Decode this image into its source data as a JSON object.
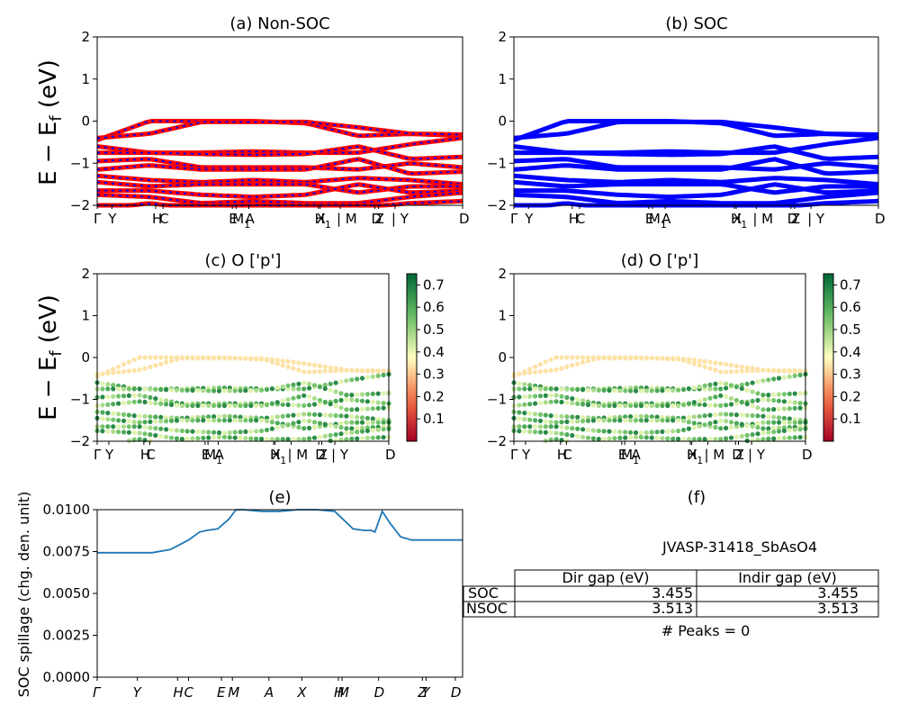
{
  "chart_data": [
    {
      "id": "a",
      "type": "line",
      "title": "(a) Non-SOC",
      "ylabel_main": "E − E",
      "ylabel_sub": "f",
      "ylabel_unit": " (eV)",
      "ylim": [
        -2,
        2
      ],
      "yticks": [
        "−2",
        "−1",
        "0",
        "1",
        "2"
      ],
      "kpath_labels": [
        {
          "t": "Γ",
          "x": 0.0
        },
        {
          "t": "Y",
          "x": 0.04
        },
        {
          "t": "H",
          "x": 0.16
        },
        {
          "t": "C",
          "x": 0.18
        },
        {
          "t": "E",
          "x": 0.37
        },
        {
          "t": "M",
          "x": 0.38,
          "sub": "1"
        },
        {
          "t": "A",
          "x": 0.415
        },
        {
          "t": "X",
          "x": 0.61
        },
        {
          "t": "H",
          "x": 0.605,
          "sub": "1"
        },
        {
          "t": "| M",
          "x": 0.665
        },
        {
          "t": "D",
          "x": 0.76
        },
        {
          "t": "Z",
          "x": 0.77
        },
        {
          "t": "| Y",
          "x": 0.815
        },
        {
          "t": "D",
          "x": 1.0
        }
      ],
      "series": [
        {
          "color": "#ff0000",
          "overlay": "#0000ff"
        }
      ]
    },
    {
      "id": "b",
      "type": "line",
      "title": "(b) SOC",
      "ylim": [
        -2,
        2
      ],
      "yticks": [
        "−2",
        "−1",
        "0",
        "1",
        "2"
      ],
      "series": [
        {
          "color": "#0000ff"
        }
      ]
    },
    {
      "id": "c",
      "type": "scatter",
      "title": "(c)  O ['p']",
      "ylim": [
        -2,
        2
      ],
      "yticks": [
        "−2",
        "−1",
        "0",
        "1",
        "2"
      ],
      "colorbar": {
        "cmap": "RdYlGn",
        "ticks": [
          "0.1",
          "0.2",
          "0.3",
          "0.4",
          "0.5",
          "0.6",
          "0.7"
        ],
        "min": 0.0,
        "max": 0.75
      }
    },
    {
      "id": "d",
      "type": "scatter",
      "title": "(d) O ['p']",
      "ylim": [
        -2,
        2
      ],
      "yticks": [
        "−2",
        "−1",
        "0",
        "1",
        "2"
      ],
      "colorbar": {
        "cmap": "RdYlGn",
        "ticks": [
          "0.1",
          "0.2",
          "0.3",
          "0.4",
          "0.5",
          "0.6",
          "0.7"
        ],
        "min": 0.0,
        "max": 0.75
      }
    },
    {
      "id": "e",
      "type": "line",
      "title": "(e)",
      "ylabel": "SOC spillage (chg. den. unit)",
      "ylim": [
        0,
        0.0105
      ],
      "yticks": [
        "0.0000",
        "0.0025",
        "0.0050",
        "0.0075",
        "0.0100"
      ],
      "xticks": [
        "Γ",
        "Y",
        "H",
        "C",
        "E",
        "M",
        "A",
        "X",
        "H",
        "M",
        "D",
        "Z",
        "Y",
        "D"
      ],
      "x": [
        0,
        0.05,
        0.1,
        0.15,
        0.2,
        0.25,
        0.28,
        0.3,
        0.33,
        0.36,
        0.38,
        0.4,
        0.45,
        0.5,
        0.55,
        0.6,
        0.65,
        0.7,
        0.73,
        0.75,
        0.76,
        0.78,
        0.8,
        0.83,
        0.86,
        0.9,
        0.95,
        1.0
      ],
      "values": [
        0.0078,
        0.0078,
        0.0078,
        0.0078,
        0.008,
        0.0086,
        0.0091,
        0.0092,
        0.0093,
        0.0099,
        0.0105,
        0.0105,
        0.0104,
        0.0104,
        0.0105,
        0.0105,
        0.0104,
        0.0093,
        0.0092,
        0.0092,
        0.0091,
        0.0104,
        0.0097,
        0.0088,
        0.0086,
        0.0086,
        0.0086,
        0.0086
      ],
      "color": "#1f77b4"
    }
  ],
  "panel_f": {
    "title": "(f)",
    "material": "JVASP-31418_SbAsO4",
    "columns": [
      "Dir gap (eV)",
      "Indir gap (eV)"
    ],
    "rows": [
      {
        "label": "SOC",
        "dir": "3.455",
        "indir": "3.455"
      },
      {
        "label": "NSOC",
        "dir": "3.513",
        "indir": "3.513"
      }
    ],
    "peaks": "# Peaks = 0"
  }
}
